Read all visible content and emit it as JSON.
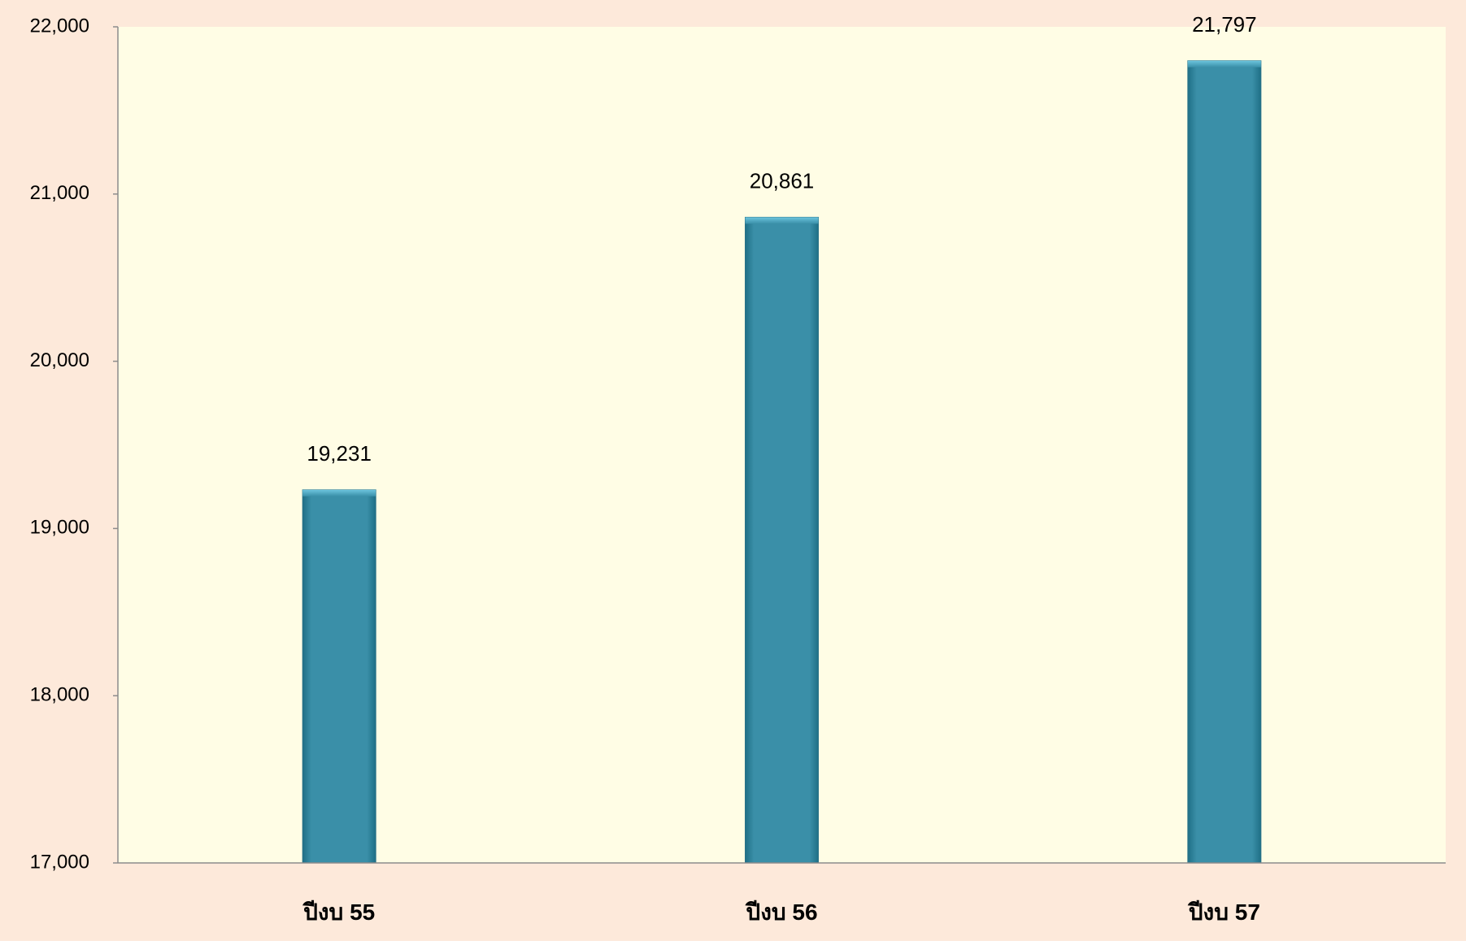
{
  "chart_data": {
    "type": "bar",
    "categories": [
      "ปีงบ 55",
      "ปีงบ 56",
      "ปีงบ 57"
    ],
    "values": [
      19231,
      20861,
      21797
    ],
    "data_labels": [
      "19,231",
      "20,861",
      "21,797"
    ],
    "title": "",
    "xlabel": "",
    "ylabel": "",
    "ylim": [
      17000,
      22000
    ],
    "yticks": [
      17000,
      18000,
      19000,
      20000,
      21000,
      22000
    ],
    "ytick_labels": [
      "17,000",
      "18,000",
      "19,000",
      "20,000",
      "21,000",
      "22,000"
    ],
    "grid": false,
    "legend": "none"
  },
  "colors": {
    "page_background": "#FDE9DA",
    "plot_background": "#FFFDE5",
    "bar": "#3A8FA8",
    "bar_highlight": "#6CC4DD",
    "axis": "#8C8C8C"
  }
}
